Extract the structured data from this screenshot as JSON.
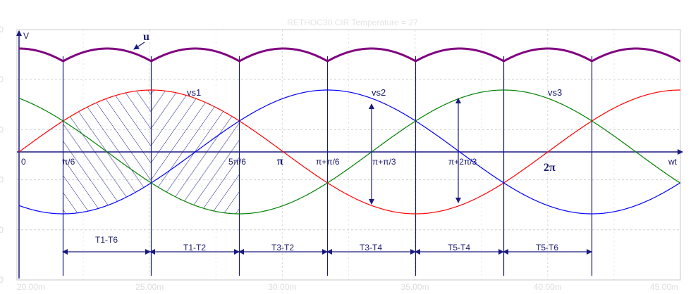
{
  "chart_data": {
    "type": "line",
    "title": "RETHOC30.CIR Temperature = 27",
    "ylabel": "V",
    "xlabel": "wt",
    "x_ticks": [
      "20.00m",
      "25.00m",
      "30.00m",
      "35.00m",
      "40.00m",
      "45.00m"
    ],
    "y_ticks": [
      "400",
      "200",
      "0",
      "-200",
      "-400",
      "-600"
    ],
    "xlim": [
      20.0,
      45.0
    ],
    "ylim": [
      -600,
      400
    ],
    "grid": true,
    "series": [
      {
        "name": "u",
        "color": "#800080",
        "kind": "rectified",
        "amplitude": 1.0,
        "phase_deg": 0
      },
      {
        "name": "vs1",
        "color": "#ff0000",
        "kind": "sine",
        "amplitude": 1.0,
        "phase_deg": 0
      },
      {
        "name": "vs2",
        "color": "#0000ff",
        "kind": "sine",
        "amplitude": 1.0,
        "phase_deg": -120
      },
      {
        "name": "vs3",
        "color": "#008000",
        "kind": "sine",
        "amplitude": 1.0,
        "phase_deg": -240
      }
    ],
    "angle_labels": [
      "0",
      "π/6",
      "5π/6",
      "π",
      "π+π/6",
      "π+π/3",
      "π+2π/3",
      "2π"
    ],
    "intervals": [
      "T1-T6",
      "T1-T2",
      "T3-T2",
      "T3-T4",
      "T5-T4",
      "T5-T6"
    ]
  }
}
